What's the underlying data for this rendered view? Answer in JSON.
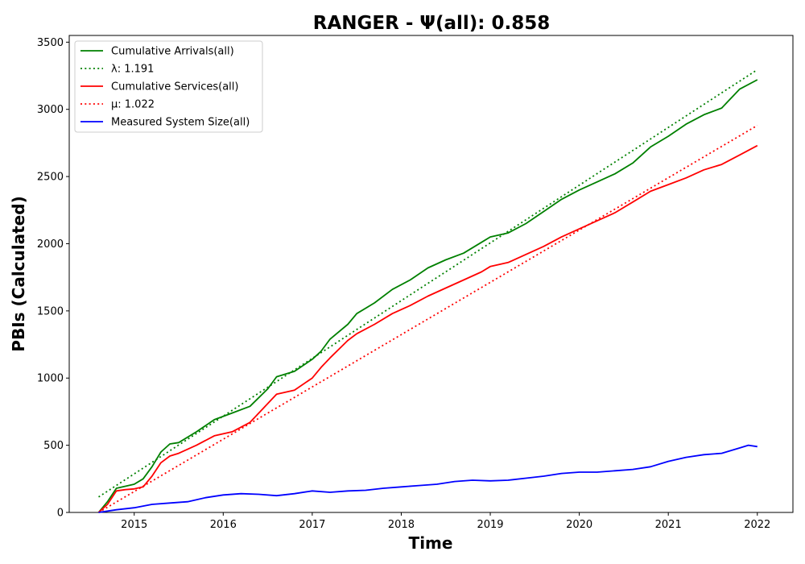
{
  "chart_data": {
    "type": "line",
    "title": "RANGER -  Ψ(all): 0.858",
    "xlabel": "Time",
    "ylabel": "PBIs (Calculated)",
    "xlim": [
      2014.27,
      2022.4
    ],
    "ylim": [
      0,
      3550
    ],
    "xticks": [
      2015,
      2016,
      2017,
      2018,
      2019,
      2020,
      2021,
      2022
    ],
    "xtick_labels": [
      "2015",
      "2016",
      "2017",
      "2018",
      "2019",
      "2020",
      "2021",
      "2022"
    ],
    "yticks": [
      0,
      500,
      1000,
      1500,
      2000,
      2500,
      3000,
      3500
    ],
    "ytick_labels": [
      "0",
      "500",
      "1000",
      "1500",
      "2000",
      "2500",
      "3000",
      "3500"
    ],
    "grid": false,
    "legend_position": "top-left",
    "series": [
      {
        "name": "Cumulative Arrivals(all)",
        "style": "solid",
        "color": "#008000",
        "x": [
          2014.6,
          2014.7,
          2014.8,
          2014.9,
          2015.0,
          2015.1,
          2015.2,
          2015.3,
          2015.4,
          2015.5,
          2015.7,
          2015.9,
          2016.1,
          2016.3,
          2016.5,
          2016.6,
          2016.8,
          2017.0,
          2017.1,
          2017.2,
          2017.4,
          2017.5,
          2017.7,
          2017.9,
          2018.1,
          2018.3,
          2018.5,
          2018.7,
          2018.9,
          2019.0,
          2019.2,
          2019.4,
          2019.6,
          2019.8,
          2020.0,
          2020.2,
          2020.4,
          2020.6,
          2020.8,
          2021.0,
          2021.2,
          2021.4,
          2021.6,
          2021.8,
          2022.0
        ],
        "y": [
          0,
          80,
          180,
          195,
          210,
          250,
          340,
          450,
          510,
          520,
          600,
          690,
          740,
          790,
          920,
          1010,
          1050,
          1140,
          1200,
          1290,
          1400,
          1480,
          1560,
          1660,
          1730,
          1820,
          1880,
          1930,
          2010,
          2050,
          2080,
          2150,
          2240,
          2330,
          2400,
          2460,
          2520,
          2600,
          2720,
          2800,
          2890,
          2960,
          3010,
          3150,
          3220
        ]
      },
      {
        "name": "λ: 1.191",
        "style": "dotted",
        "color": "#008000",
        "x": [
          2014.6,
          2022.0
        ],
        "y": [
          115,
          3295
        ]
      },
      {
        "name": "Cumulative Services(all)",
        "style": "solid",
        "color": "#ff0000",
        "x": [
          2014.6,
          2014.7,
          2014.8,
          2014.9,
          2015.0,
          2015.1,
          2015.2,
          2015.3,
          2015.4,
          2015.5,
          2015.7,
          2015.9,
          2016.1,
          2016.3,
          2016.5,
          2016.6,
          2016.8,
          2017.0,
          2017.1,
          2017.2,
          2017.4,
          2017.5,
          2017.7,
          2017.9,
          2018.1,
          2018.3,
          2018.5,
          2018.7,
          2018.9,
          2019.0,
          2019.2,
          2019.4,
          2019.6,
          2019.8,
          2020.0,
          2020.2,
          2020.4,
          2020.6,
          2020.8,
          2021.0,
          2021.2,
          2021.4,
          2021.6,
          2021.8,
          2022.0
        ],
        "y": [
          0,
          60,
          160,
          170,
          175,
          190,
          270,
          370,
          420,
          440,
          500,
          570,
          600,
          670,
          810,
          880,
          910,
          1000,
          1080,
          1150,
          1280,
          1330,
          1400,
          1480,
          1540,
          1610,
          1670,
          1730,
          1790,
          1830,
          1860,
          1920,
          1980,
          2050,
          2110,
          2170,
          2230,
          2310,
          2390,
          2440,
          2490,
          2550,
          2590,
          2660,
          2730
        ]
      },
      {
        "name": "μ: 1.022",
        "style": "dotted",
        "color": "#ff0000",
        "x": [
          2014.6,
          2022.0
        ],
        "y": [
          0,
          2880
        ]
      },
      {
        "name": "Measured System Size(all)",
        "style": "solid",
        "color": "#0000ff",
        "x": [
          2014.6,
          2014.8,
          2015.0,
          2015.2,
          2015.4,
          2015.6,
          2015.8,
          2016.0,
          2016.2,
          2016.4,
          2016.6,
          2016.8,
          2017.0,
          2017.2,
          2017.4,
          2017.6,
          2017.8,
          2018.0,
          2018.2,
          2018.4,
          2018.6,
          2018.8,
          2019.0,
          2019.2,
          2019.4,
          2019.6,
          2019.8,
          2020.0,
          2020.2,
          2020.4,
          2020.6,
          2020.8,
          2021.0,
          2021.2,
          2021.4,
          2021.6,
          2021.8,
          2021.9,
          2022.0
        ],
        "y": [
          0,
          20,
          35,
          60,
          70,
          80,
          110,
          130,
          140,
          135,
          125,
          140,
          160,
          150,
          160,
          165,
          180,
          190,
          200,
          210,
          230,
          240,
          235,
          240,
          255,
          270,
          290,
          300,
          300,
          310,
          320,
          340,
          380,
          410,
          430,
          440,
          480,
          500,
          490
        ]
      }
    ]
  }
}
